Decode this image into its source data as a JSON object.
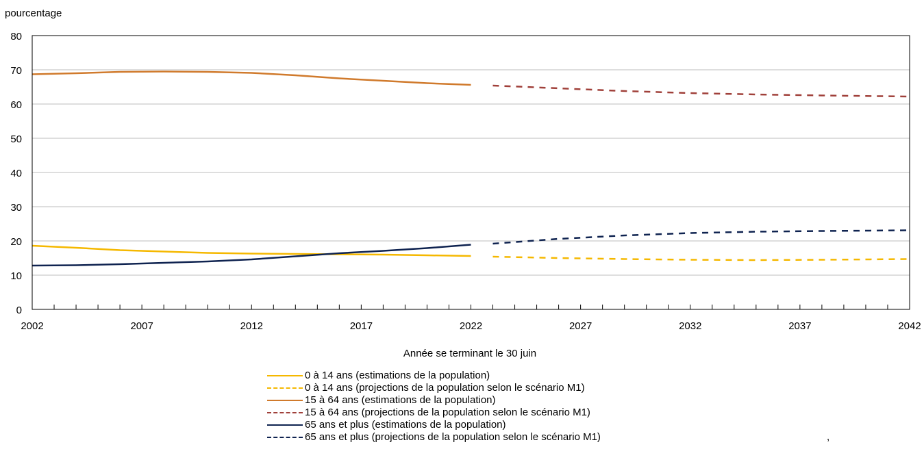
{
  "chart_data": {
    "type": "line",
    "ylabel": "pourcentage",
    "xlabel": "Année se terminant le 30 juin",
    "ylim": [
      0,
      80
    ],
    "yticks": [
      0,
      10,
      20,
      30,
      40,
      50,
      60,
      70,
      80
    ],
    "xlim": [
      2002,
      2042
    ],
    "xticks": [
      2002,
      2007,
      2012,
      2017,
      2022,
      2027,
      2032,
      2037,
      2042
    ],
    "grid": true,
    "series": [
      {
        "name": "0 à 14 ans (estimations de la population)",
        "color": "#f5b800",
        "style": "solid",
        "x": [
          2002,
          2004,
          2006,
          2008,
          2010,
          2012,
          2014,
          2016,
          2018,
          2020,
          2022
        ],
        "y": [
          18.6,
          18.0,
          17.3,
          16.9,
          16.5,
          16.3,
          16.2,
          16.1,
          16.0,
          15.8,
          15.6
        ]
      },
      {
        "name": "0 à 14 ans (projections de la population selon le scénario M1)",
        "color": "#f5b800",
        "style": "dashed",
        "x": [
          2023,
          2026,
          2029,
          2032,
          2035,
          2038,
          2042
        ],
        "y": [
          15.4,
          15.0,
          14.7,
          14.5,
          14.4,
          14.5,
          14.7
        ]
      },
      {
        "name": "15 à 64 ans (estimations de la population)",
        "color": "#d07a2c",
        "style": "solid",
        "x": [
          2002,
          2004,
          2006,
          2008,
          2010,
          2012,
          2014,
          2016,
          2018,
          2020,
          2022
        ],
        "y": [
          68.7,
          69.0,
          69.4,
          69.5,
          69.4,
          69.1,
          68.4,
          67.5,
          66.8,
          66.1,
          65.6
        ]
      },
      {
        "name": "15 à 64 ans (projections de la population selon le scénario M1)",
        "color": "#a0403a",
        "style": "dashed",
        "x": [
          2023,
          2026,
          2029,
          2032,
          2035,
          2038,
          2042
        ],
        "y": [
          65.4,
          64.6,
          63.8,
          63.2,
          62.8,
          62.5,
          62.2
        ]
      },
      {
        "name": "65 ans et plus (estimations de la population)",
        "color": "#0f2350",
        "style": "solid",
        "x": [
          2002,
          2004,
          2006,
          2008,
          2010,
          2012,
          2014,
          2016,
          2018,
          2020,
          2022
        ],
        "y": [
          12.8,
          12.9,
          13.2,
          13.6,
          14.0,
          14.6,
          15.5,
          16.4,
          17.1,
          17.9,
          18.9
        ]
      },
      {
        "name": "65 ans et plus (projections de la population selon le scénario M1)",
        "color": "#0f2350",
        "style": "dashed",
        "x": [
          2023,
          2026,
          2029,
          2032,
          2035,
          2038,
          2042
        ],
        "y": [
          19.2,
          20.6,
          21.6,
          22.3,
          22.7,
          22.9,
          23.1
        ]
      }
    ]
  },
  "stray_mark": ","
}
